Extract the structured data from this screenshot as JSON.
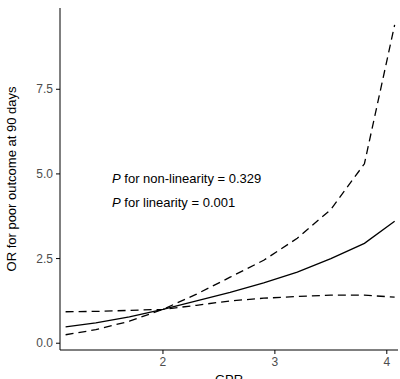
{
  "chart_data": {
    "type": "line",
    "x_label": "GPR",
    "y_label": "OR for poor outcome at 90 days",
    "annotations": [
      "P for non-linearity = 0.329",
      "P for linearity = 0.001"
    ],
    "x": [
      1.13,
      1.4,
      1.7,
      2.0,
      2.3,
      2.6,
      2.9,
      3.2,
      3.5,
      3.8,
      4.07
    ],
    "series": [
      {
        "color": "#000000",
        "line_style": "solid",
        "values": [
          0.48,
          0.6,
          0.78,
          1.0,
          1.25,
          1.5,
          1.78,
          2.1,
          2.5,
          2.95,
          3.6
        ]
      },
      {
        "color": "#000000",
        "line_style": "dashed",
        "values": [
          0.25,
          0.4,
          0.65,
          1.0,
          1.45,
          1.95,
          2.45,
          3.1,
          3.95,
          5.3,
          9.4
        ]
      },
      {
        "color": "#000000",
        "line_style": "dashed",
        "values": [
          0.93,
          0.94,
          0.97,
          1.0,
          1.12,
          1.25,
          1.33,
          1.38,
          1.42,
          1.42,
          1.36
        ]
      }
    ],
    "xlim": [
      1.08,
      4.1
    ],
    "xticks": [
      2,
      3,
      4
    ],
    "ylim": [
      -0.2,
      9.9
    ],
    "yticks": [
      {
        "value": 0,
        "label": "0.0"
      },
      2.5,
      {
        "value": 5,
        "label": "5.0"
      },
      7.5
    ],
    "grid": false
  }
}
